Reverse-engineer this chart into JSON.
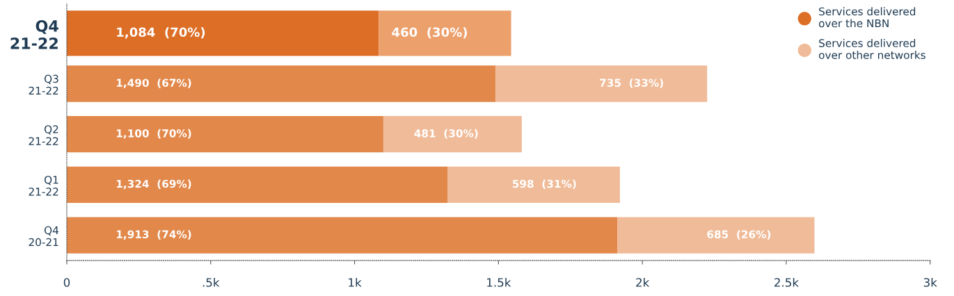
{
  "chart_data": {
    "type": "bar",
    "orientation": "horizontal",
    "stacked": true,
    "categories": [
      "Q4\n21-22",
      "Q3\n21-22",
      "Q2\n21-22",
      "Q1\n21-22",
      "Q4\n20-21"
    ],
    "series": [
      {
        "name": "Services delivered\nover the NBN",
        "color": "#dd6e26",
        "colors": [
          "#dd6e26",
          "#e2884a",
          "#e2884a",
          "#e2884a",
          "#e2884a"
        ],
        "values": [
          1084,
          1490,
          1100,
          1324,
          1913
        ],
        "value_labels": [
          "1,084  (70%)",
          "1,490  (67%)",
          "1,100  (70%)",
          "1,324  (69%)",
          "1,913  (74%)"
        ]
      },
      {
        "name": "Services delivered\nover other networks",
        "color": "#f0bb98",
        "colors": [
          "#eca06c",
          "#f0bb98",
          "#f0bb98",
          "#f0bb98",
          "#f0bb98"
        ],
        "values": [
          460,
          735,
          481,
          598,
          685
        ],
        "value_labels": [
          "460  (30%)",
          "735  (33%)",
          "481  (30%)",
          "598  (31%)",
          "685  (26%)"
        ]
      }
    ],
    "xlim": [
      0,
      3000
    ],
    "xticks": [
      0,
      {
        "value": 500,
        "label": ".5k"
      },
      {
        "value": 1000,
        "label": "1k"
      },
      {
        "value": 1500,
        "label": "1.5k"
      },
      {
        "value": 2000,
        "label": "2k"
      },
      {
        "value": 2500,
        "label": "2.5k"
      },
      {
        "value": 3000,
        "label": "3k"
      }
    ],
    "grid": false,
    "legend": "top right"
  }
}
